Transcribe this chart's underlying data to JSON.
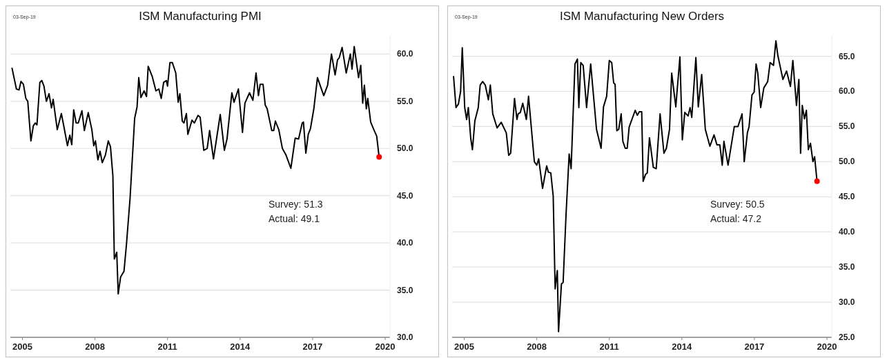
{
  "chart_data": [
    {
      "type": "line",
      "title": "ISM Manufacturing PMI",
      "annotations": [
        "03-Sep-19",
        "Survey: 51.3",
        "Actual:  49.1"
      ],
      "xlim": [
        2004.5,
        2020.2
      ],
      "xticks": [
        2005,
        2008,
        2011,
        2014,
        2017,
        2020
      ],
      "ylim": [
        30,
        62
      ],
      "yticks": [
        {
          "value": 30,
          "label": "30.0"
        },
        {
          "value": 35,
          "label": "35.0"
        },
        {
          "value": 40,
          "label": "40.0"
        },
        {
          "value": 45,
          "label": "45.0"
        },
        {
          "value": 50,
          "label": "50.0"
        },
        {
          "value": 55,
          "label": "55.0"
        },
        {
          "value": 60,
          "label": "60.0"
        }
      ],
      "grid": "y",
      "series": [
        {
          "type": "line",
          "color": "#000000",
          "x": [
            2004.57,
            2004.75,
            2004.86,
            2004.94,
            2005.04,
            2005.14,
            2005.22,
            2005.35,
            2005.45,
            2005.53,
            2005.6,
            2005.72,
            2005.8,
            2005.89,
            2005.99,
            2006.1,
            2006.2,
            2006.27,
            2006.44,
            2006.61,
            2006.73,
            2006.86,
            2006.96,
            2007.04,
            2007.12,
            2007.22,
            2007.31,
            2007.46,
            2007.56,
            2007.72,
            2007.87,
            2007.95,
            2008.02,
            2008.12,
            2008.21,
            2008.3,
            2008.43,
            2008.55,
            2008.64,
            2008.74,
            2008.8,
            2008.9,
            2008.96,
            2009.06,
            2009.2,
            2009.3,
            2009.45,
            2009.64,
            2009.74,
            2009.81,
            2009.9,
            2010.03,
            2010.13,
            2010.2,
            2010.37,
            2010.52,
            2010.64,
            2010.74,
            2010.84,
            2010.95,
            2011.0,
            2011.1,
            2011.2,
            2011.34,
            2011.44,
            2011.51,
            2011.61,
            2011.68,
            2011.78,
            2011.84,
            2012.01,
            2012.11,
            2012.26,
            2012.35,
            2012.5,
            2012.64,
            2012.74,
            2012.9,
            2013.18,
            2013.35,
            2013.46,
            2013.66,
            2013.75,
            2013.93,
            2014.1,
            2014.2,
            2014.39,
            2014.53,
            2014.66,
            2014.76,
            2014.83,
            2014.95,
            2015.04,
            2015.12,
            2015.31,
            2015.39,
            2015.46,
            2015.6,
            2015.75,
            2015.9,
            2016.1,
            2016.28,
            2016.42,
            2016.57,
            2016.62,
            2016.72,
            2016.82,
            2016.91,
            2017.05,
            2017.2,
            2017.46,
            2017.62,
            2017.78,
            2017.93,
            2018.03,
            2018.1,
            2018.22,
            2018.39,
            2018.56,
            2018.63,
            2018.72,
            2018.9,
            2018.99,
            2019.07,
            2019.14,
            2019.22,
            2019.28,
            2019.4,
            2019.53,
            2019.65,
            2019.75
          ],
          "values": [
            58.5,
            56.3,
            56.2,
            57.1,
            56.8,
            55.3,
            55.0,
            50.8,
            52.4,
            52.7,
            52.5,
            57.0,
            57.2,
            56.6,
            55.0,
            55.8,
            54.3,
            55.2,
            52.0,
            53.7,
            52.1,
            50.3,
            51.4,
            50.4,
            54.1,
            52.7,
            52.7,
            54.0,
            51.9,
            53.8,
            52.0,
            50.3,
            50.8,
            48.8,
            49.7,
            48.5,
            49.3,
            50.8,
            50.2,
            47.1,
            38.3,
            39.0,
            34.6,
            36.4,
            37.0,
            39.8,
            44.7,
            53.2,
            54.4,
            57.5,
            55.4,
            56.1,
            55.5,
            58.7,
            57.6,
            56.1,
            56.3,
            55.3,
            57.0,
            57.2,
            56.6,
            59.1,
            59.1,
            58.0,
            54.9,
            55.8,
            52.9,
            52.7,
            53.7,
            51.5,
            53.0,
            52.7,
            53.5,
            53.3,
            49.8,
            50.0,
            51.9,
            48.9,
            53.6,
            49.8,
            51.0,
            55.9,
            54.9,
            56.3,
            51.7,
            54.8,
            55.9,
            55.1,
            58.0,
            55.6,
            56.8,
            56.8,
            54.6,
            54.2,
            51.9,
            51.9,
            52.9,
            52.0,
            50.0,
            49.3,
            47.9,
            51.1,
            51.0,
            52.7,
            52.8,
            49.5,
            51.5,
            52.1,
            54.2,
            57.5,
            55.6,
            56.7,
            60.0,
            57.8,
            59.4,
            59.6,
            60.7,
            58.0,
            60.0,
            58.4,
            60.8,
            57.5,
            58.8,
            54.8,
            56.7,
            54.2,
            55.3,
            52.8,
            52.0,
            51.3,
            49.1
          ]
        },
        {
          "type": "scatter",
          "color": "#ff0000",
          "marker": "circle",
          "x": [
            2019.75
          ],
          "values": [
            49.1
          ]
        }
      ]
    },
    {
      "type": "line",
      "title": "ISM Manufacturing New Orders",
      "annotations": [
        "03-Sep-19",
        "Survey: 50.5",
        "Actual:  47.2"
      ],
      "xlim": [
        2004.5,
        2020.2
      ],
      "xticks": [
        2005,
        2008,
        2011,
        2014,
        2017,
        2020
      ],
      "ylim": [
        25,
        68
      ],
      "yticks": [
        {
          "value": 25,
          "label": "25.0"
        },
        {
          "value": 30,
          "label": "30.0"
        },
        {
          "value": 35,
          "label": "35.0"
        },
        {
          "value": 40,
          "label": "40.0"
        },
        {
          "value": 45,
          "label": "45.0"
        },
        {
          "value": 50,
          "label": "50.0"
        },
        {
          "value": 55,
          "label": "55.0"
        },
        {
          "value": 60,
          "label": "60.0"
        },
        {
          "value": 65,
          "label": "65.0"
        }
      ],
      "grid": "y",
      "series": [
        {
          "type": "line",
          "color": "#000000",
          "x": [
            2004.56,
            2004.66,
            2004.76,
            2004.85,
            2004.92,
            2005.02,
            2005.1,
            2005.17,
            2005.27,
            2005.34,
            2005.44,
            2005.58,
            2005.66,
            2005.76,
            2005.87,
            2006.0,
            2006.08,
            2006.18,
            2006.36,
            2006.53,
            2006.74,
            2006.84,
            2006.92,
            2007.08,
            2007.18,
            2007.23,
            2007.32,
            2007.42,
            2007.57,
            2007.66,
            2007.9,
            2008.0,
            2008.08,
            2008.24,
            2008.41,
            2008.48,
            2008.58,
            2008.68,
            2008.76,
            2008.85,
            2008.9,
            2009.02,
            2009.09,
            2009.21,
            2009.34,
            2009.42,
            2009.58,
            2009.68,
            2009.74,
            2009.82,
            2009.92,
            2010.06,
            2010.23,
            2010.47,
            2010.66,
            2010.76,
            2010.89,
            2011.0,
            2011.1,
            2011.18,
            2011.24,
            2011.31,
            2011.39,
            2011.49,
            2011.56,
            2011.66,
            2011.74,
            2011.82,
            2012.07,
            2012.16,
            2012.24,
            2012.34,
            2012.4,
            2012.5,
            2012.57,
            2012.66,
            2012.82,
            2012.94,
            2013.1,
            2013.26,
            2013.36,
            2013.49,
            2013.58,
            2013.75,
            2013.92,
            2014.02,
            2014.12,
            2014.26,
            2014.34,
            2014.41,
            2014.58,
            2014.68,
            2014.82,
            2014.97,
            2015.16,
            2015.33,
            2015.45,
            2015.57,
            2015.67,
            2015.74,
            2015.91,
            2016.17,
            2016.32,
            2016.49,
            2016.58,
            2016.71,
            2016.78,
            2016.9,
            2016.99,
            2017.07,
            2017.14,
            2017.26,
            2017.39,
            2017.55,
            2017.65,
            2017.79,
            2017.89,
            2017.97,
            2018.18,
            2018.33,
            2018.49,
            2018.59,
            2018.74,
            2018.84,
            2018.91,
            2018.98,
            2019.07,
            2019.15,
            2019.23,
            2019.32,
            2019.42,
            2019.49,
            2019.59
          ],
          "values": [
            62.1,
            57.7,
            58.2,
            60.0,
            66.2,
            57.7,
            56.0,
            57.7,
            53.3,
            51.7,
            55.8,
            57.7,
            60.9,
            61.4,
            60.9,
            58.8,
            60.9,
            56.8,
            54.8,
            55.6,
            54.1,
            50.9,
            51.2,
            59.0,
            56.0,
            56.8,
            57.0,
            58.3,
            56.0,
            59.3,
            50.0,
            49.5,
            50.4,
            46.2,
            49.4,
            48.5,
            48.4,
            45.1,
            31.9,
            34.5,
            25.8,
            32.6,
            32.8,
            42.4,
            51.1,
            49.0,
            63.9,
            64.6,
            57.7,
            64.1,
            63.7,
            57.7,
            63.9,
            54.6,
            51.9,
            57.8,
            59.3,
            64.4,
            64.1,
            61.2,
            61.0,
            54.4,
            54.6,
            56.8,
            52.9,
            51.9,
            51.9,
            54.9,
            57.3,
            56.6,
            57.1,
            57.1,
            47.2,
            48.2,
            48.4,
            53.4,
            49.2,
            49.0,
            56.8,
            51.2,
            51.9,
            54.6,
            62.6,
            57.8,
            64.9,
            53.1,
            57.0,
            56.5,
            57.7,
            56.3,
            64.8,
            57.8,
            62.4,
            54.6,
            52.2,
            53.8,
            52.4,
            52.4,
            49.5,
            52.9,
            49.5,
            55.0,
            55.0,
            56.8,
            50.0,
            54.1,
            55.0,
            59.5,
            59.9,
            63.9,
            62.6,
            57.7,
            60.5,
            61.4,
            64.1,
            63.7,
            67.2,
            65.1,
            61.7,
            62.9,
            60.7,
            64.4,
            58.0,
            61.7,
            51.2,
            58.0,
            56.1,
            57.3,
            51.7,
            52.6,
            50.0,
            50.7,
            47.2
          ]
        },
        {
          "type": "scatter",
          "color": "#ff0000",
          "marker": "circle",
          "x": [
            2019.59
          ],
          "values": [
            47.2
          ]
        }
      ]
    }
  ]
}
